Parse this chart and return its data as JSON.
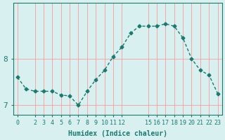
{
  "x": [
    0,
    1,
    2,
    3,
    4,
    5,
    6,
    7,
    8,
    9,
    10,
    11,
    12,
    13,
    14,
    15,
    16,
    17,
    18,
    19,
    20,
    21,
    22,
    23
  ],
  "y": [
    7.6,
    7.35,
    7.3,
    7.3,
    7.3,
    7.22,
    7.2,
    7.0,
    7.3,
    7.55,
    7.75,
    8.05,
    8.25,
    8.55,
    8.7,
    8.7,
    8.7,
    8.75,
    8.7,
    8.45,
    8.0,
    7.75,
    7.65,
    7.25
  ],
  "xlabel": "Humidex (Indice chaleur)",
  "line_color": "#1a7a6e",
  "marker_color": "#1a7a6e",
  "bg_color": "#d8f0f0",
  "grid_color": "#ff9999",
  "axis_color": "#1a7a6e",
  "ylim": [
    6.8,
    9.2
  ],
  "xlim": [
    -0.5,
    23.5
  ],
  "yticks": [
    7,
    8
  ],
  "xticks": [
    0,
    2,
    3,
    4,
    5,
    6,
    7,
    8,
    9,
    10,
    11,
    12,
    15,
    16,
    17,
    18,
    19,
    20,
    21,
    22,
    23
  ]
}
